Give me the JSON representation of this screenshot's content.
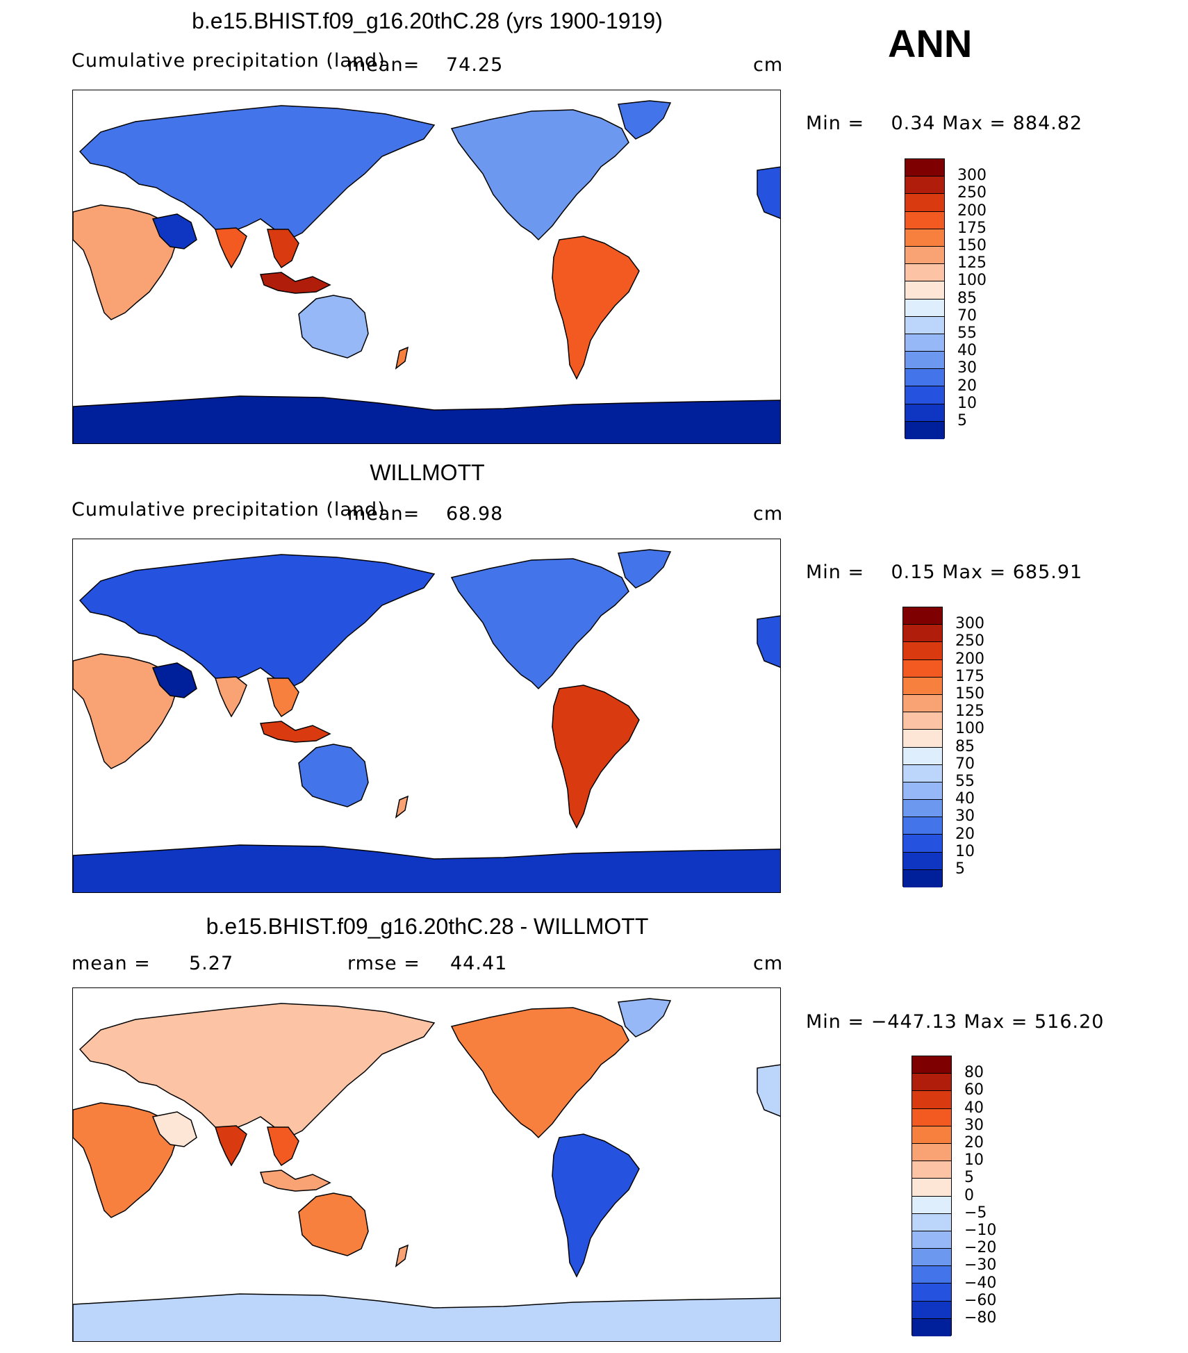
{
  "season": "ANN",
  "panels": [
    {
      "title": "b.e15.BHIST.f09_g16.20thC.28 (yrs 1900-1919)",
      "left_label": "Cumulative precipitation (land)",
      "mean_label": "mean=",
      "mean_value": "74.25",
      "units": "cm",
      "min_max": "Min =    0.34 Max = 884.82",
      "colorbar_labels": [
        "300",
        "250",
        "200",
        "175",
        "150",
        "125",
        "100",
        "85",
        "70",
        "55",
        "40",
        "30",
        "20",
        "10",
        "5"
      ]
    },
    {
      "title": "WILLMOTT",
      "left_label": "Cumulative precipitation (land)",
      "mean_label": "mean=",
      "mean_value": "68.98",
      "units": "cm",
      "min_max": "Min =    0.15 Max = 685.91",
      "colorbar_labels": [
        "300",
        "250",
        "200",
        "175",
        "150",
        "125",
        "100",
        "85",
        "70",
        "55",
        "40",
        "30",
        "20",
        "10",
        "5"
      ]
    },
    {
      "title": "b.e15.BHIST.f09_g16.20thC.28 - WILLMOTT",
      "mean_label": "mean =",
      "mean_value": "5.27",
      "rmse_label": "rmse =",
      "rmse_value": "44.41",
      "units": "cm",
      "min_max": "Min = −447.13 Max = 516.20",
      "colorbar_labels": [
        "80",
        "60",
        "40",
        "30",
        "20",
        "10",
        "5",
        "0",
        "−5",
        "−10",
        "−20",
        "−30",
        "−40",
        "−60",
        "−80"
      ]
    }
  ],
  "colors": {
    "precip_scale": [
      "#7f0000",
      "#b01d0a",
      "#d93a10",
      "#f25a22",
      "#f7803f",
      "#f9a274",
      "#fcc4a4",
      "#fde6d5",
      "#dfeefc",
      "#bcd5fa",
      "#96b8f6",
      "#6d98f0",
      "#4474ea",
      "#2553e0",
      "#0f36c2",
      "#001f9b"
    ],
    "diff_scale": [
      "#7f0000",
      "#b01d0a",
      "#d93a10",
      "#f25a22",
      "#f7803f",
      "#f9a274",
      "#fcc4a4",
      "#fde6d5",
      "#dfeefc",
      "#bcd5fa",
      "#96b8f6",
      "#6d98f0",
      "#4474ea",
      "#2553e0",
      "#0f36c2",
      "#001f9b"
    ]
  }
}
